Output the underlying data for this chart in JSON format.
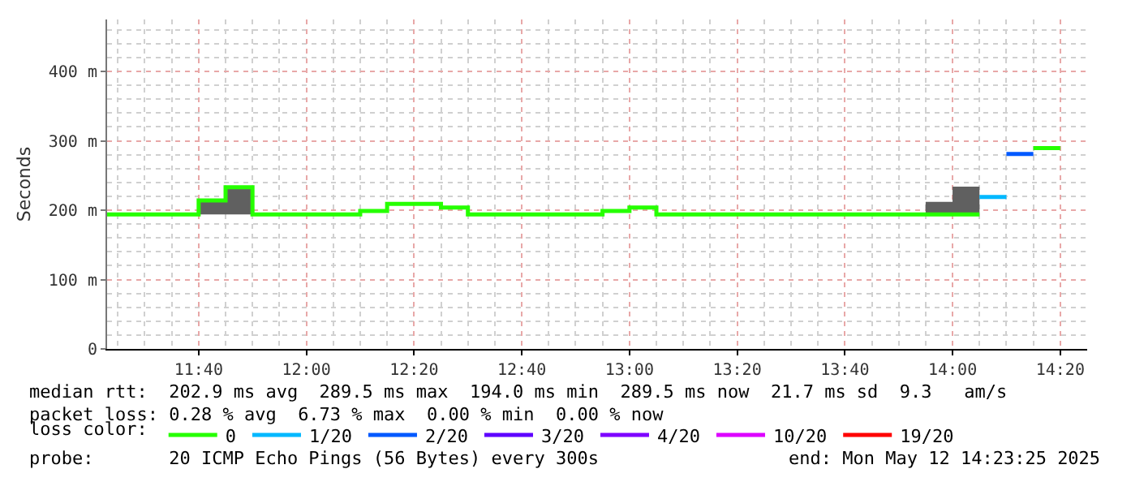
{
  "chart_data": {
    "type": "step",
    "ylabel": "Seconds",
    "legend_title": "loss color:",
    "legend": "bottom",
    "grid": true,
    "line_style": "solid",
    "marker": "none",
    "xlim": [
      "2025-05-12T11:23",
      "2025-05-12T14:25"
    ],
    "xticks": [
      {
        "value": "2025-05-12T11:40",
        "label": "11:40"
      },
      {
        "value": "2025-05-12T12:00",
        "label": "12:00"
      },
      {
        "value": "2025-05-12T12:20",
        "label": "12:20"
      },
      {
        "value": "2025-05-12T12:40",
        "label": "12:40"
      },
      {
        "value": "2025-05-12T13:00",
        "label": "13:00"
      },
      {
        "value": "2025-05-12T13:20",
        "label": "13:20"
      },
      {
        "value": "2025-05-12T13:40",
        "label": "13:40"
      },
      {
        "value": "2025-05-12T14:00",
        "label": "14:00"
      },
      {
        "value": "2025-05-12T14:20",
        "label": "14:20"
      }
    ],
    "ylim": [
      0,
      475
    ],
    "yticks": [
      0,
      {
        "value": 100,
        "label": "100 m"
      },
      {
        "value": 200,
        "label": "200 m"
      },
      {
        "value": 300,
        "label": "300 m"
      },
      {
        "value": 400,
        "label": "400 m"
      }
    ],
    "series": [
      {
        "name": "0",
        "color": "#26ff00",
        "x": [
          "2025-05-12T11:23",
          "2025-05-12T11:40",
          "2025-05-12T11:45",
          "2025-05-12T11:50",
          "2025-05-12T12:10",
          "2025-05-12T12:15",
          "2025-05-12T12:25",
          "2025-05-12T12:30",
          "2025-05-12T12:55",
          "2025-05-12T13:00",
          "2025-05-12T13:05",
          "2025-05-12T13:55",
          "2025-05-12T14:00",
          "2025-05-12T14:05"
        ],
        "values": [
          194,
          214,
          233,
          194,
          199,
          209,
          204,
          194,
          199,
          204,
          194,
          194,
          194,
          194
        ],
        "lower": [
          194,
          194,
          194,
          194,
          199,
          209,
          204,
          194,
          199,
          204,
          194,
          194,
          194,
          194
        ],
        "upper": [
          194,
          214,
          233,
          194,
          199,
          209,
          204,
          194,
          199,
          204,
          194,
          212,
          234,
          194
        ]
      },
      {
        "name": "1/20",
        "color": "#00b8ff",
        "x": [
          "2025-05-12T14:05",
          "2025-05-12T14:10"
        ],
        "values": [
          219,
          219
        ]
      },
      {
        "name": "2/20",
        "color": "#0059ff",
        "x": [
          "2025-05-12T14:10",
          "2025-05-12T14:15"
        ],
        "values": [
          281,
          281
        ]
      },
      {
        "color": "#26ff00",
        "x": [
          "2025-05-12T14:15",
          "2025-05-12T14:20"
        ],
        "values": [
          289.5,
          289.5
        ]
      },
      {
        "name": "3/20",
        "color": "#5e00ff"
      },
      {
        "name": "4/20",
        "color": "#7e00ff"
      },
      {
        "name": "10/20",
        "color": "#dd00ff"
      },
      {
        "name": "19/20",
        "color": "#ff0000"
      }
    ],
    "annotations": [
      "median rtt:  202.9 ms avg  289.5 ms max  194.0 ms min  289.5 ms now  21.7 ms sd  9.3   am/s",
      "packet loss: 0.28 % avg  6.73 % max  0.00 % min  0.00 % now",
      "probe:       20 ICMP Echo Pings (56 Bytes) every 300s",
      "end: Mon May 12 14:23:25 2025"
    ]
  }
}
